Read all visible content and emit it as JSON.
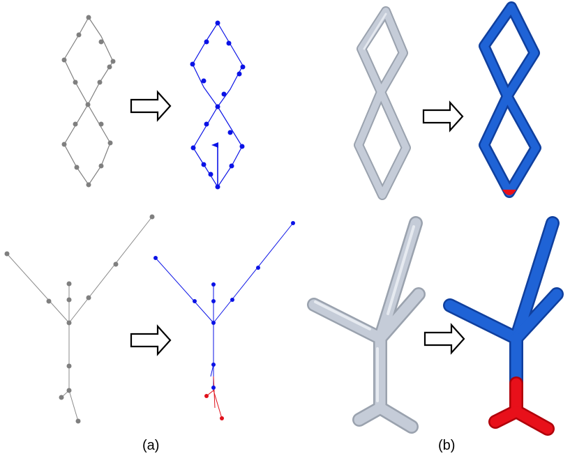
{
  "captions": {
    "a": "(a)",
    "b": "(b)"
  },
  "colors": {
    "graph_gray": "#7f7f7f",
    "graph_blue": "#0a12e6",
    "graph_red": "#e0101a",
    "tube_gray_fill": "#c5ccd8",
    "tube_gray_stroke": "#9aa2ae",
    "tube_blue_fill": "#1f63d6",
    "tube_blue_stroke": "#0f3f9e",
    "tube_red_fill": "#e8101a",
    "arrow_outline": "#000000"
  },
  "icons": {
    "transform_arrow": "right-arrow-icon",
    "direction_arrow": "up-arrow-icon"
  }
}
